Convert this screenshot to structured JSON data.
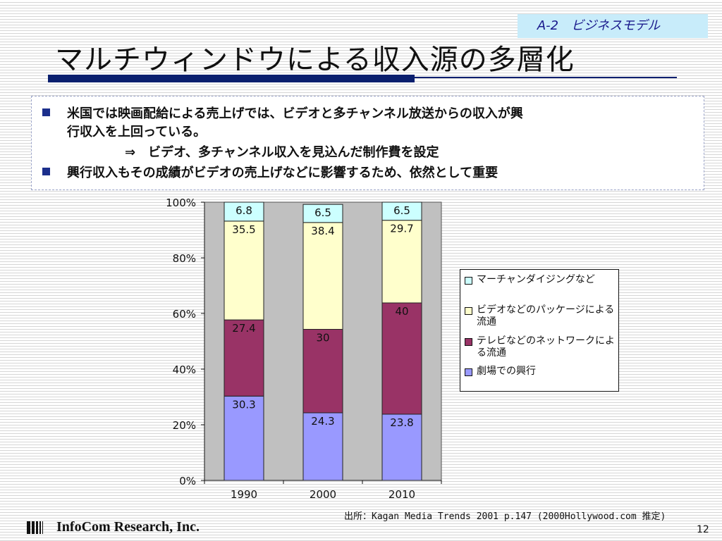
{
  "header": {
    "tag": "A-2　ビジネスモデル",
    "title": "マルチウィンドウによる収入源の多層化"
  },
  "bullets": [
    "米国では映画配給による売上げでは、ビデオと多チャンネル放送からの収入が興",
    "行収入を上回っている。",
    "⇒　ビデオ、多チャンネル収入を見込んだ制作費を設定",
    "興行収入もその成績がビデオの売上げなどに影響するため、依然として重要"
  ],
  "colors": {
    "accent": "#0a1f6e",
    "plot_bg": "#c0c0c0",
    "series": [
      "#9999ff",
      "#993366",
      "#ffffcc",
      "#ccffff"
    ]
  },
  "chart_data": {
    "type": "bar",
    "stacked": true,
    "categories": [
      "1990",
      "2000",
      "2010"
    ],
    "y_ticks": [
      "0%",
      "20%",
      "40%",
      "60%",
      "80%",
      "100%"
    ],
    "ylim": [
      0,
      100
    ],
    "series": [
      {
        "name": "劇場での興行",
        "values": [
          30.3,
          24.3,
          23.8
        ]
      },
      {
        "name": "テレビなどのネットワークによる流通",
        "values": [
          27.4,
          30,
          40
        ]
      },
      {
        "name": "ビデオなどのパッケージによる流通",
        "values": [
          35.5,
          38.4,
          29.7
        ]
      },
      {
        "name": "マーチャンダイジングなど",
        "values": [
          6.8,
          6.5,
          6.5
        ]
      }
    ],
    "legend_order": [
      3,
      2,
      1,
      0
    ],
    "legend_position": "right",
    "grid": false
  },
  "footer": {
    "source": "出所：Kagan Media Trends 2001 p.147 (2000Hollywood.com 推定)",
    "company": "InfoCom Research, Inc.",
    "page": "12"
  }
}
